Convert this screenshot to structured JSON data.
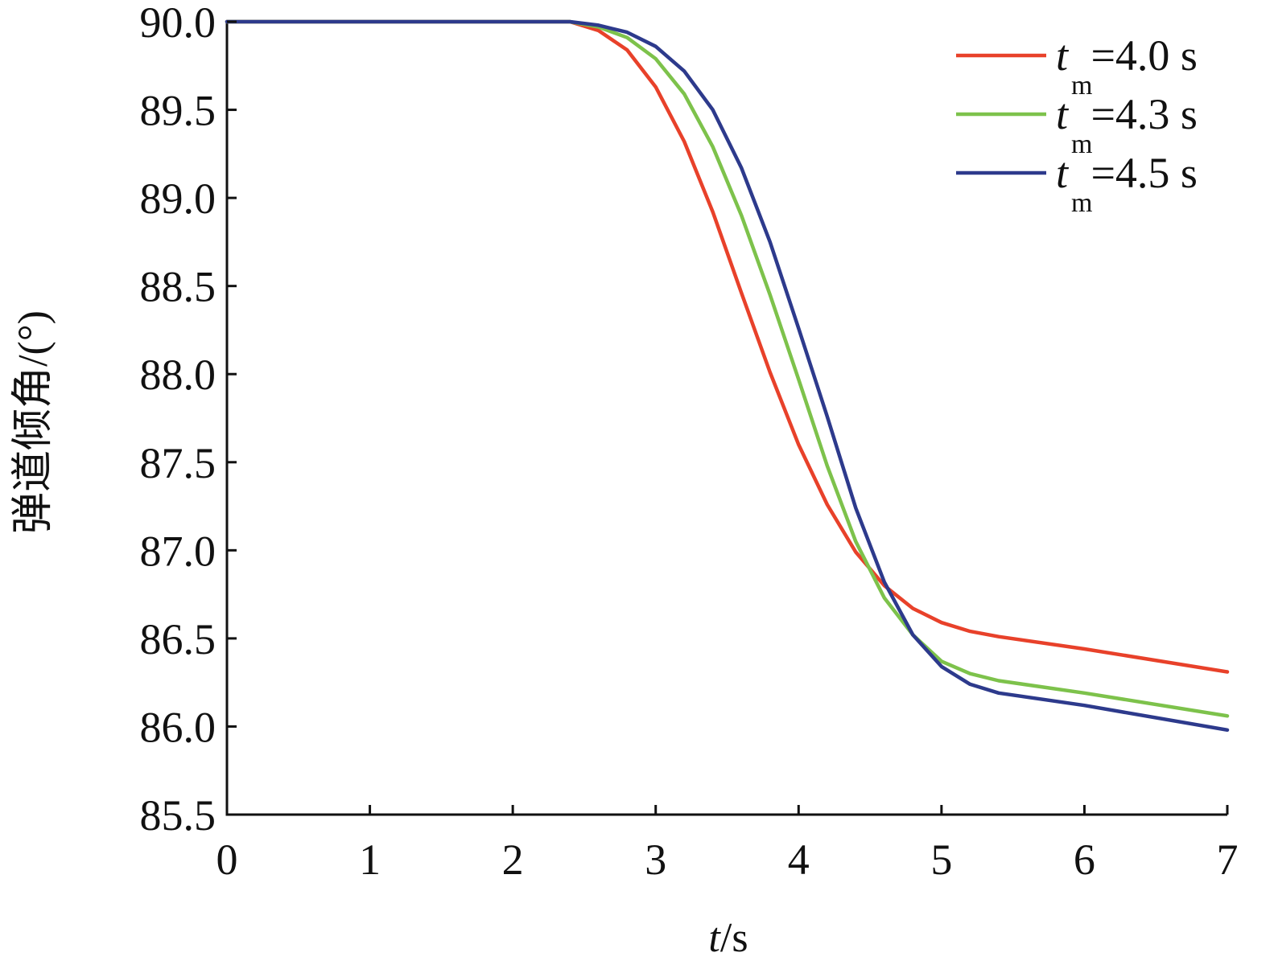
{
  "chart_data": {
    "type": "line",
    "xlabel": {
      "var": "t",
      "unit": "/s"
    },
    "ylabel": "弹道倾角/(°)",
    "xlim": [
      0,
      7
    ],
    "ylim": [
      85.5,
      90.0
    ],
    "x_ticks": [
      0,
      1,
      2,
      3,
      4,
      5,
      6,
      7
    ],
    "y_ticks": [
      "85.5",
      "86.0",
      "86.5",
      "87.0",
      "87.5",
      "88.0",
      "88.5",
      "89.0",
      "89.5",
      "90.0"
    ],
    "grid": false,
    "legend_position": "top-right",
    "series": [
      {
        "name": "4.0 s",
        "legend": {
          "var": "t",
          "sub": "m",
          "value": "=4.0 s"
        },
        "color": "#e8412a",
        "x": [
          0,
          2.4,
          2.6,
          2.8,
          3.0,
          3.2,
          3.4,
          3.6,
          3.8,
          4.0,
          4.2,
          4.4,
          4.6,
          4.8,
          5.0,
          5.2,
          5.4,
          6.0,
          7.0
        ],
        "y": [
          90.0,
          90.0,
          89.95,
          89.84,
          89.63,
          89.32,
          88.92,
          88.46,
          88.01,
          87.6,
          87.26,
          86.99,
          86.8,
          86.67,
          86.59,
          86.54,
          86.51,
          86.44,
          86.31
        ]
      },
      {
        "name": "4.3 s",
        "legend": {
          "var": "t",
          "sub": "m",
          "value": "=4.3 s"
        },
        "color": "#7dc24b",
        "x": [
          0,
          2.4,
          2.6,
          2.8,
          3.0,
          3.2,
          3.4,
          3.6,
          3.8,
          4.0,
          4.2,
          4.4,
          4.6,
          4.8,
          5.0,
          5.2,
          5.4,
          6.0,
          7.0
        ],
        "y": [
          90.0,
          90.0,
          89.97,
          89.91,
          89.79,
          89.59,
          89.29,
          88.9,
          88.45,
          87.97,
          87.48,
          87.05,
          86.73,
          86.52,
          86.37,
          86.3,
          86.26,
          86.19,
          86.06
        ]
      },
      {
        "name": "4.5 s",
        "legend": {
          "var": "t",
          "sub": "m",
          "value": "=4.5 s"
        },
        "color": "#2d3a8c",
        "x": [
          0,
          2.4,
          2.6,
          2.8,
          3.0,
          3.2,
          3.4,
          3.6,
          3.8,
          4.0,
          4.2,
          4.4,
          4.6,
          4.8,
          5.0,
          5.2,
          5.4,
          6.0,
          7.0
        ],
        "y": [
          90.0,
          90.0,
          89.98,
          89.94,
          89.86,
          89.72,
          89.5,
          89.17,
          88.75,
          88.26,
          87.76,
          87.24,
          86.82,
          86.52,
          86.34,
          86.24,
          86.19,
          86.12,
          85.98
        ]
      }
    ]
  }
}
